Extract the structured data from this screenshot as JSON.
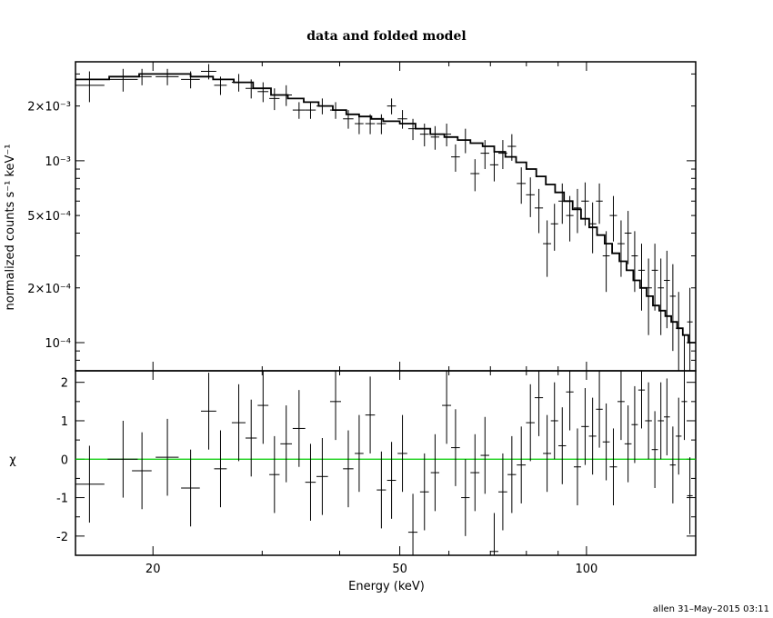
{
  "chart_data": [
    {
      "type": "line",
      "title": "data and folded model",
      "xlabel": "",
      "ylabel": "normalized counts s⁻¹ keV⁻¹",
      "xscale": "log",
      "yscale": "log",
      "xlim": [
        15,
        150
      ],
      "ylim": [
        7e-05,
        0.0035
      ],
      "yticks": [
        {
          "value": 0.0001,
          "label": "10⁻⁴"
        },
        {
          "value": 0.0002,
          "label": "2×10⁻⁴"
        },
        {
          "value": 0.0005,
          "label": "5×10⁻⁴"
        },
        {
          "value": 0.001,
          "label": "10⁻³"
        },
        {
          "value": 0.002,
          "label": "2×10⁻³"
        }
      ],
      "series": [
        {
          "kind": "data-with-errors",
          "x": [
            15.8,
            17.9,
            19.2,
            21.1,
            23.0,
            24.6,
            25.7,
            27.5,
            28.8,
            30.1,
            31.4,
            32.8,
            34.4,
            35.9,
            37.5,
            39.4,
            41.3,
            43.0,
            44.8,
            46.7,
            48.5,
            50.5,
            52.5,
            54.8,
            57.0,
            59.5,
            61.5,
            63.8,
            66.1,
            68.6,
            71.0,
            73.3,
            75.8,
            78.5,
            81.2,
            83.8,
            86.4,
            88.8,
            91.4,
            94.0,
            96.7,
            99.5,
            102.3,
            104.9,
            107.6,
            110.5,
            113.7,
            116.7,
            119.6,
            122.7,
            125.9,
            128.9,
            131.8,
            134.8,
            137.8,
            140.8,
            143.8,
            146.8
          ],
          "y": [
            0.0026,
            0.0028,
            0.0029,
            0.0029,
            0.0028,
            0.0031,
            0.0026,
            0.0027,
            0.0025,
            0.0024,
            0.0022,
            0.0023,
            0.0019,
            0.0019,
            0.002,
            0.0019,
            0.0017,
            0.0016,
            0.0016,
            0.0016,
            0.002,
            0.0017,
            0.0015,
            0.0014,
            0.00135,
            0.0014,
            0.00105,
            0.0013,
            0.00085,
            0.0011,
            0.00095,
            0.0011,
            0.0012,
            0.00075,
            0.00065,
            0.00055,
            0.00035,
            0.00045,
            0.0006,
            0.0005,
            0.00055,
            0.0006,
            0.00045,
            0.0006,
            0.0003,
            0.0005,
            0.00035,
            0.0004,
            0.0003,
            0.00025,
            0.0002,
            0.00025,
            0.0002,
            0.00022,
            0.00018,
            0.00012,
            7e-05,
            0.00013
          ],
          "xerr": [
            0.9,
            1.0,
            0.7,
            0.9,
            0.8,
            0.7,
            0.6,
            0.7,
            0.6,
            0.6,
            0.6,
            0.7,
            0.8,
            0.7,
            0.8,
            0.8,
            0.8,
            0.7,
            0.8,
            0.8,
            0.8,
            0.9,
            0.9,
            0.9,
            0.9,
            1.0,
            1.0,
            1.0,
            1.1,
            1.1,
            1.1,
            1.2,
            1.2,
            1.3,
            1.3,
            1.3,
            1.3,
            1.2,
            1.3,
            1.3,
            1.3,
            1.4,
            1.4,
            1.3,
            1.4,
            1.5,
            1.5,
            1.5,
            1.4,
            1.5,
            1.6,
            1.5,
            1.5,
            1.5,
            1.5,
            1.5,
            1.5,
            1.5
          ],
          "yerr": [
            0.0005,
            0.0004,
            0.0003,
            0.0003,
            0.0003,
            0.0003,
            0.0003,
            0.0003,
            0.0003,
            0.0003,
            0.0003,
            0.0003,
            0.0002,
            0.0002,
            0.0002,
            0.0002,
            0.0002,
            0.0002,
            0.0002,
            0.0002,
            0.0002,
            0.0002,
            0.0002,
            0.0002,
            0.0002,
            0.0002,
            0.00018,
            0.0002,
            0.00017,
            0.0002,
            0.00018,
            0.0002,
            0.0002,
            0.00017,
            0.00016,
            0.00015,
            0.00012,
            0.00013,
            0.00015,
            0.00014,
            0.00015,
            0.00016,
            0.00014,
            0.00015,
            0.00011,
            0.00014,
            0.00012,
            0.00013,
            0.00011,
            0.0001,
            9e-05,
            0.0001,
            9e-05,
            0.0001,
            9e-05,
            7e-05,
            4e-05,
            7e-05
          ]
        },
        {
          "kind": "model-step",
          "x": [
            15.0,
            17.0,
            19.0,
            21.0,
            23.0,
            25.0,
            27.0,
            29.0,
            31.0,
            33.0,
            35.0,
            37.0,
            39.0,
            41.0,
            43.0,
            45.0,
            47.0,
            50.0,
            53.0,
            56.0,
            59.0,
            62.0,
            65.0,
            68.0,
            71.0,
            74.0,
            77.0,
            80.0,
            83.0,
            86.0,
            89.0,
            92.0,
            95.0,
            98.0,
            101.0,
            104.0,
            107.0,
            110.0,
            113.0,
            116.0,
            119.0,
            122.0,
            125.0,
            128.0,
            131.0,
            134.0,
            137.0,
            140.0,
            143.0,
            146.0,
            150.0
          ],
          "y": [
            0.0028,
            0.0029,
            0.003,
            0.003,
            0.0029,
            0.0028,
            0.0027,
            0.0025,
            0.0023,
            0.0022,
            0.0021,
            0.002,
            0.0019,
            0.0018,
            0.00175,
            0.0017,
            0.00165,
            0.0016,
            0.0015,
            0.0014,
            0.00135,
            0.0013,
            0.00125,
            0.0012,
            0.00112,
            0.00105,
            0.00098,
            0.0009,
            0.00082,
            0.00074,
            0.00067,
            0.0006,
            0.00054,
            0.00048,
            0.00043,
            0.00039,
            0.00035,
            0.00031,
            0.00028,
            0.00025,
            0.00022,
            0.0002,
            0.00018,
            0.00016,
            0.00015,
            0.00014,
            0.00013,
            0.00012,
            0.00011,
            0.0001,
            0.0001
          ]
        }
      ]
    },
    {
      "type": "scatter",
      "title": "",
      "xlabel": "Energy (keV)",
      "ylabel": "χ",
      "xscale": "log",
      "xlim": [
        15,
        150
      ],
      "ylim": [
        -2.5,
        2.3
      ],
      "xticks": [
        20,
        50,
        100
      ],
      "yticks": [
        -2,
        -1,
        0,
        1,
        2
      ],
      "zero_line_color": "#00cc00",
      "series": [
        {
          "kind": "residuals-with-errors",
          "x": [
            15.8,
            17.9,
            19.2,
            21.1,
            23.0,
            24.6,
            25.7,
            27.5,
            28.8,
            30.1,
            31.4,
            32.8,
            34.4,
            35.9,
            37.5,
            39.4,
            41.3,
            43.0,
            44.8,
            46.7,
            48.5,
            50.5,
            52.5,
            54.8,
            57.0,
            59.5,
            61.5,
            63.8,
            66.1,
            68.6,
            71.0,
            73.3,
            75.8,
            78.5,
            81.2,
            83.8,
            86.4,
            88.8,
            91.4,
            94.0,
            96.7,
            99.5,
            102.3,
            104.9,
            107.6,
            110.5,
            113.7,
            116.7,
            119.6,
            122.7,
            125.9,
            128.9,
            131.8,
            134.8,
            137.8,
            140.8,
            143.8,
            146.8
          ],
          "y": [
            -0.65,
            0.0,
            -0.3,
            0.05,
            -0.75,
            1.25,
            -0.25,
            0.95,
            0.55,
            1.4,
            -0.4,
            0.4,
            0.8,
            -0.6,
            -0.45,
            1.5,
            -0.25,
            0.15,
            1.15,
            -0.8,
            -0.55,
            0.15,
            -1.9,
            -0.85,
            -0.35,
            1.4,
            0.3,
            -1.0,
            -0.35,
            0.1,
            -2.4,
            -0.85,
            -0.4,
            -0.15,
            0.95,
            1.6,
            0.15,
            1.0,
            0.35,
            1.75,
            -0.2,
            0.85,
            0.6,
            1.3,
            0.45,
            -0.2,
            1.5,
            0.4,
            0.9,
            1.8,
            1.0,
            0.25,
            1.0,
            1.1,
            -0.15,
            0.6,
            1.5,
            -0.95
          ],
          "xerr": [
            0.9,
            1.0,
            0.7,
            0.9,
            0.8,
            0.7,
            0.6,
            0.7,
            0.6,
            0.6,
            0.6,
            0.7,
            0.8,
            0.7,
            0.8,
            0.8,
            0.8,
            0.7,
            0.8,
            0.8,
            0.8,
            0.9,
            0.9,
            0.9,
            0.9,
            1.0,
            1.0,
            1.0,
            1.1,
            1.1,
            1.1,
            1.2,
            1.2,
            1.3,
            1.3,
            1.3,
            1.3,
            1.2,
            1.3,
            1.3,
            1.3,
            1.4,
            1.4,
            1.3,
            1.4,
            1.5,
            1.5,
            1.5,
            1.4,
            1.5,
            1.6,
            1.5,
            1.5,
            1.5,
            1.5,
            1.5,
            1.5,
            1.5
          ],
          "yerr": [
            1.0,
            1.0,
            1.0,
            1.0,
            1.0,
            1.0,
            1.0,
            1.0,
            1.0,
            1.0,
            1.0,
            1.0,
            1.0,
            1.0,
            1.0,
            1.0,
            1.0,
            1.0,
            1.0,
            1.0,
            1.0,
            1.0,
            1.0,
            1.0,
            1.0,
            1.0,
            1.0,
            1.0,
            1.0,
            1.0,
            1.0,
            1.0,
            1.0,
            1.0,
            1.0,
            1.0,
            1.0,
            1.0,
            1.0,
            1.0,
            1.0,
            1.0,
            1.0,
            1.0,
            1.0,
            1.0,
            1.0,
            1.0,
            1.0,
            1.0,
            1.0,
            1.0,
            1.0,
            1.0,
            1.0,
            1.0,
            1.0,
            1.0
          ]
        }
      ]
    }
  ],
  "footer_stamp": "allen 31–May–2015 03:11",
  "colors": {
    "axis": "#000000",
    "data": "#000000",
    "zero_line": "#00cc00"
  }
}
